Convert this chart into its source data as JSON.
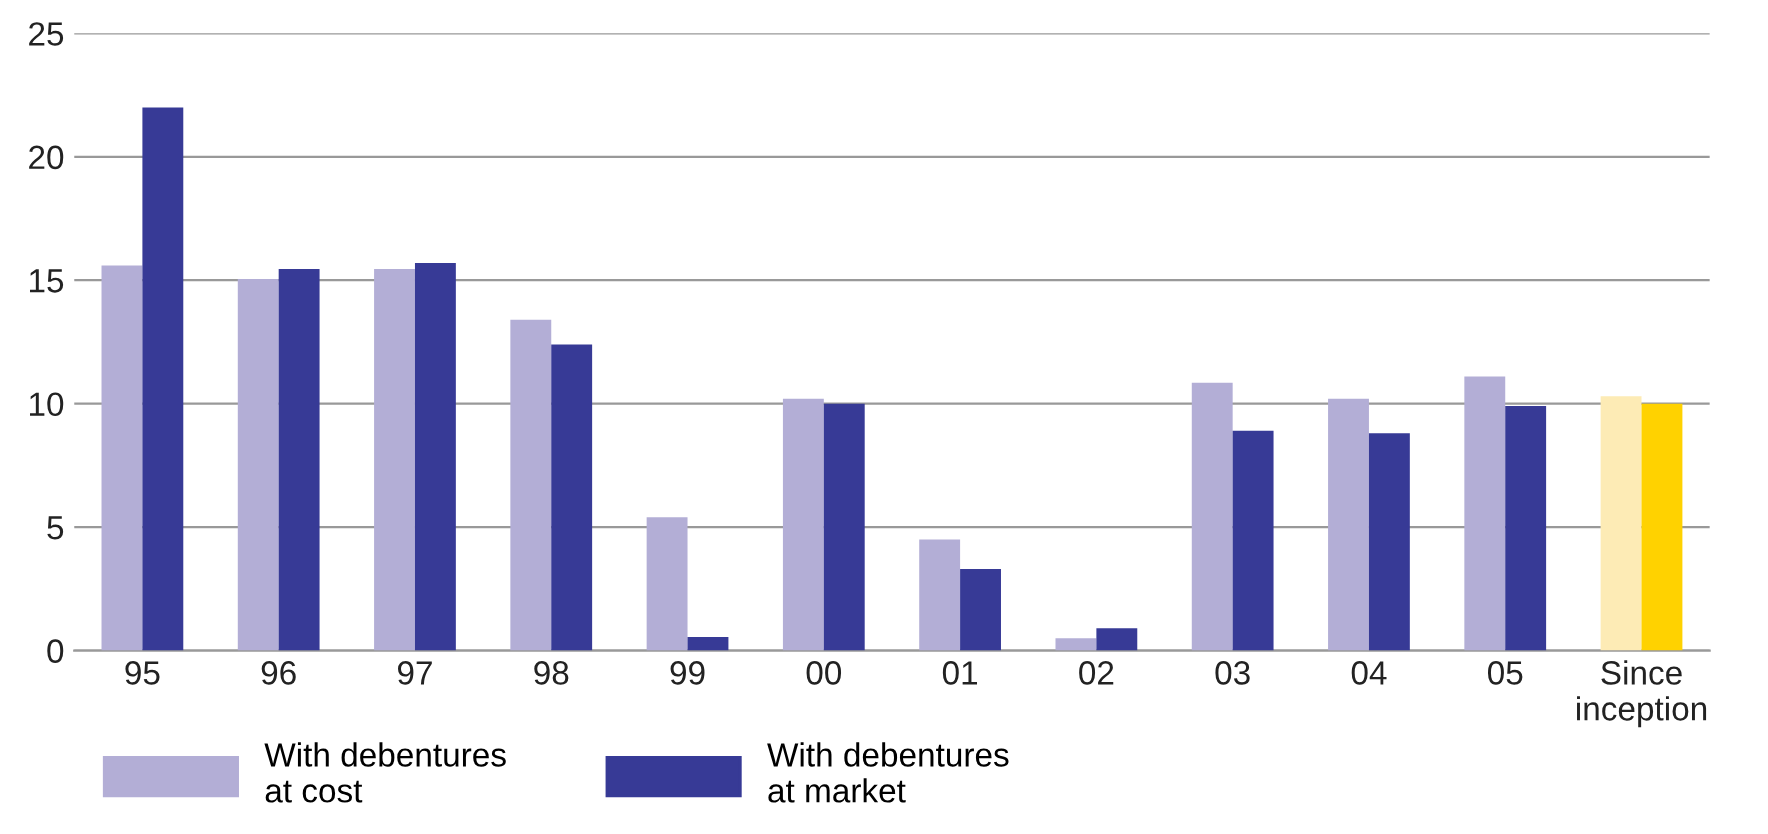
{
  "chart_data": {
    "type": "bar",
    "categories": [
      "95",
      "96",
      "97",
      "98",
      "99",
      "00",
      "01",
      "02",
      "03",
      "04",
      "05",
      "Since\ninception"
    ],
    "series": [
      {
        "name": "With debentures\nat cost",
        "color": "#b3aed6",
        "colors": [
          "#b3aed6",
          "#b3aed6",
          "#b3aed6",
          "#b3aed6",
          "#b3aed6",
          "#b3aed6",
          "#b3aed6",
          "#b3aed6",
          "#b3aed6",
          "#b3aed6",
          "#b3aed6",
          "#fdebb5"
        ],
        "values": [
          15.6,
          15.05,
          15.45,
          13.4,
          5.4,
          10.2,
          4.5,
          0.5,
          10.85,
          10.2,
          11.1,
          10.3
        ]
      },
      {
        "name": "With debentures\nat market",
        "color": "#373a96",
        "colors": [
          "#373a96",
          "#373a96",
          "#373a96",
          "#373a96",
          "#373a96",
          "#373a96",
          "#373a96",
          "#373a96",
          "#373a96",
          "#373a96",
          "#373a96",
          "#ffd200"
        ],
        "values": [
          22.0,
          15.45,
          15.7,
          12.4,
          0.55,
          10.0,
          3.3,
          0.9,
          8.9,
          8.8,
          9.9,
          10.0
        ]
      }
    ],
    "ylim": [
      0,
      25
    ],
    "yticks": [
      0,
      5,
      10,
      15,
      20,
      25
    ],
    "grid": "y",
    "legend": "bottom left"
  }
}
